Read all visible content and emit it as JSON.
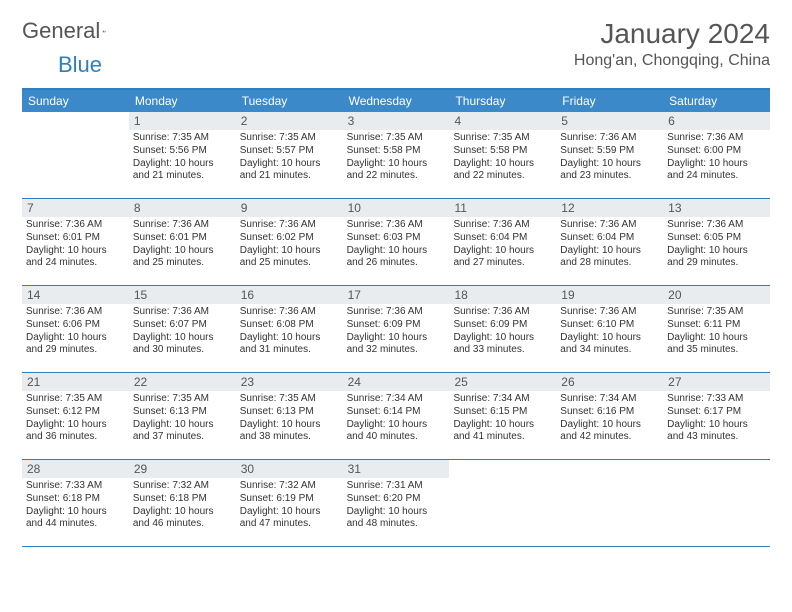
{
  "logo": {
    "text1": "General",
    "text2": "Blue"
  },
  "title": "January 2024",
  "location": "Hong'an, Chongqing, China",
  "weekdays": [
    "Sunday",
    "Monday",
    "Tuesday",
    "Wednesday",
    "Thursday",
    "Friday",
    "Saturday"
  ],
  "colors": {
    "header_bar": "#3b89c9",
    "accent_line": "#2f7fbf",
    "daynum_bg": "#e8ecef",
    "text": "#333333",
    "title_text": "#555555"
  },
  "fonts": {
    "title_size": 28,
    "location_size": 16,
    "weekday_size": 12,
    "daynum_size": 12,
    "body_size": 10
  },
  "weeks": [
    [
      {
        "n": "",
        "sunrise": "",
        "sunset": "",
        "daylight": ""
      },
      {
        "n": "1",
        "sunrise": "Sunrise: 7:35 AM",
        "sunset": "Sunset: 5:56 PM",
        "daylight": "Daylight: 10 hours and 21 minutes."
      },
      {
        "n": "2",
        "sunrise": "Sunrise: 7:35 AM",
        "sunset": "Sunset: 5:57 PM",
        "daylight": "Daylight: 10 hours and 21 minutes."
      },
      {
        "n": "3",
        "sunrise": "Sunrise: 7:35 AM",
        "sunset": "Sunset: 5:58 PM",
        "daylight": "Daylight: 10 hours and 22 minutes."
      },
      {
        "n": "4",
        "sunrise": "Sunrise: 7:35 AM",
        "sunset": "Sunset: 5:58 PM",
        "daylight": "Daylight: 10 hours and 22 minutes."
      },
      {
        "n": "5",
        "sunrise": "Sunrise: 7:36 AM",
        "sunset": "Sunset: 5:59 PM",
        "daylight": "Daylight: 10 hours and 23 minutes."
      },
      {
        "n": "6",
        "sunrise": "Sunrise: 7:36 AM",
        "sunset": "Sunset: 6:00 PM",
        "daylight": "Daylight: 10 hours and 24 minutes."
      }
    ],
    [
      {
        "n": "7",
        "sunrise": "Sunrise: 7:36 AM",
        "sunset": "Sunset: 6:01 PM",
        "daylight": "Daylight: 10 hours and 24 minutes."
      },
      {
        "n": "8",
        "sunrise": "Sunrise: 7:36 AM",
        "sunset": "Sunset: 6:01 PM",
        "daylight": "Daylight: 10 hours and 25 minutes."
      },
      {
        "n": "9",
        "sunrise": "Sunrise: 7:36 AM",
        "sunset": "Sunset: 6:02 PM",
        "daylight": "Daylight: 10 hours and 25 minutes."
      },
      {
        "n": "10",
        "sunrise": "Sunrise: 7:36 AM",
        "sunset": "Sunset: 6:03 PM",
        "daylight": "Daylight: 10 hours and 26 minutes."
      },
      {
        "n": "11",
        "sunrise": "Sunrise: 7:36 AM",
        "sunset": "Sunset: 6:04 PM",
        "daylight": "Daylight: 10 hours and 27 minutes."
      },
      {
        "n": "12",
        "sunrise": "Sunrise: 7:36 AM",
        "sunset": "Sunset: 6:04 PM",
        "daylight": "Daylight: 10 hours and 28 minutes."
      },
      {
        "n": "13",
        "sunrise": "Sunrise: 7:36 AM",
        "sunset": "Sunset: 6:05 PM",
        "daylight": "Daylight: 10 hours and 29 minutes."
      }
    ],
    [
      {
        "n": "14",
        "sunrise": "Sunrise: 7:36 AM",
        "sunset": "Sunset: 6:06 PM",
        "daylight": "Daylight: 10 hours and 29 minutes."
      },
      {
        "n": "15",
        "sunrise": "Sunrise: 7:36 AM",
        "sunset": "Sunset: 6:07 PM",
        "daylight": "Daylight: 10 hours and 30 minutes."
      },
      {
        "n": "16",
        "sunrise": "Sunrise: 7:36 AM",
        "sunset": "Sunset: 6:08 PM",
        "daylight": "Daylight: 10 hours and 31 minutes."
      },
      {
        "n": "17",
        "sunrise": "Sunrise: 7:36 AM",
        "sunset": "Sunset: 6:09 PM",
        "daylight": "Daylight: 10 hours and 32 minutes."
      },
      {
        "n": "18",
        "sunrise": "Sunrise: 7:36 AM",
        "sunset": "Sunset: 6:09 PM",
        "daylight": "Daylight: 10 hours and 33 minutes."
      },
      {
        "n": "19",
        "sunrise": "Sunrise: 7:36 AM",
        "sunset": "Sunset: 6:10 PM",
        "daylight": "Daylight: 10 hours and 34 minutes."
      },
      {
        "n": "20",
        "sunrise": "Sunrise: 7:35 AM",
        "sunset": "Sunset: 6:11 PM",
        "daylight": "Daylight: 10 hours and 35 minutes."
      }
    ],
    [
      {
        "n": "21",
        "sunrise": "Sunrise: 7:35 AM",
        "sunset": "Sunset: 6:12 PM",
        "daylight": "Daylight: 10 hours and 36 minutes."
      },
      {
        "n": "22",
        "sunrise": "Sunrise: 7:35 AM",
        "sunset": "Sunset: 6:13 PM",
        "daylight": "Daylight: 10 hours and 37 minutes."
      },
      {
        "n": "23",
        "sunrise": "Sunrise: 7:35 AM",
        "sunset": "Sunset: 6:13 PM",
        "daylight": "Daylight: 10 hours and 38 minutes."
      },
      {
        "n": "24",
        "sunrise": "Sunrise: 7:34 AM",
        "sunset": "Sunset: 6:14 PM",
        "daylight": "Daylight: 10 hours and 40 minutes."
      },
      {
        "n": "25",
        "sunrise": "Sunrise: 7:34 AM",
        "sunset": "Sunset: 6:15 PM",
        "daylight": "Daylight: 10 hours and 41 minutes."
      },
      {
        "n": "26",
        "sunrise": "Sunrise: 7:34 AM",
        "sunset": "Sunset: 6:16 PM",
        "daylight": "Daylight: 10 hours and 42 minutes."
      },
      {
        "n": "27",
        "sunrise": "Sunrise: 7:33 AM",
        "sunset": "Sunset: 6:17 PM",
        "daylight": "Daylight: 10 hours and 43 minutes."
      }
    ],
    [
      {
        "n": "28",
        "sunrise": "Sunrise: 7:33 AM",
        "sunset": "Sunset: 6:18 PM",
        "daylight": "Daylight: 10 hours and 44 minutes."
      },
      {
        "n": "29",
        "sunrise": "Sunrise: 7:32 AM",
        "sunset": "Sunset: 6:18 PM",
        "daylight": "Daylight: 10 hours and 46 minutes."
      },
      {
        "n": "30",
        "sunrise": "Sunrise: 7:32 AM",
        "sunset": "Sunset: 6:19 PM",
        "daylight": "Daylight: 10 hours and 47 minutes."
      },
      {
        "n": "31",
        "sunrise": "Sunrise: 7:31 AM",
        "sunset": "Sunset: 6:20 PM",
        "daylight": "Daylight: 10 hours and 48 minutes."
      },
      {
        "n": "",
        "sunrise": "",
        "sunset": "",
        "daylight": ""
      },
      {
        "n": "",
        "sunrise": "",
        "sunset": "",
        "daylight": ""
      },
      {
        "n": "",
        "sunrise": "",
        "sunset": "",
        "daylight": ""
      }
    ]
  ]
}
